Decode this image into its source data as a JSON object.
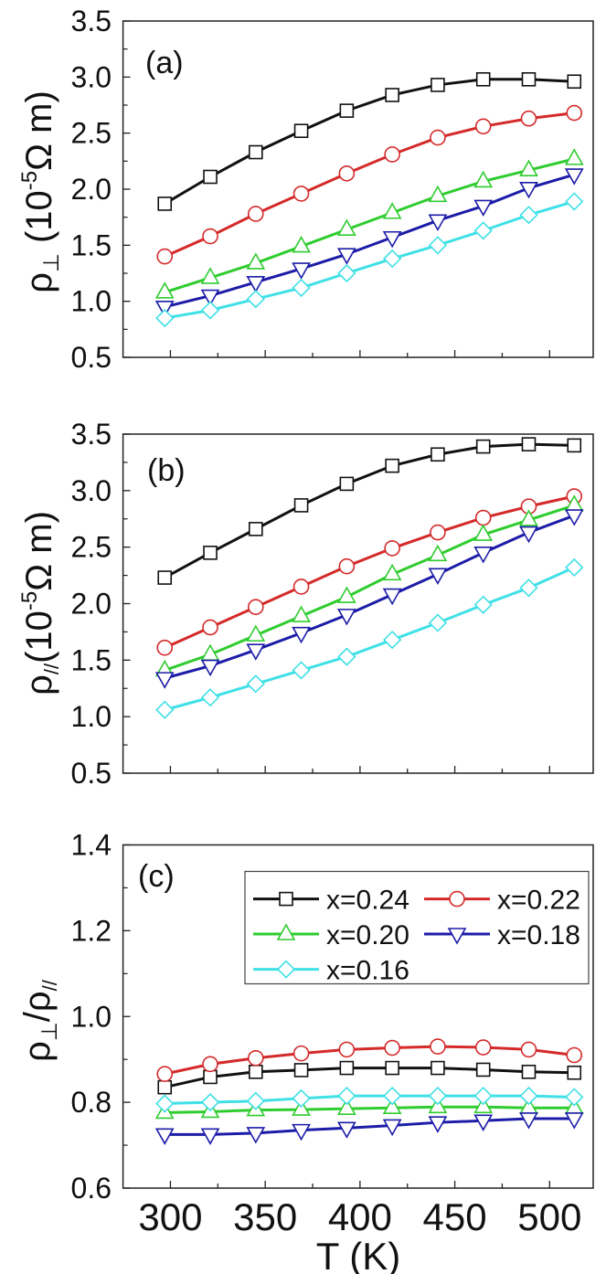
{
  "chart_data": {
    "type": "line",
    "xlabel": "T (K)",
    "x": [
      297,
      321,
      345,
      369,
      393,
      417,
      441,
      465,
      489,
      513
    ],
    "xlim": [
      275,
      523
    ],
    "xticks": [
      "300",
      "350",
      "400",
      "450",
      "500"
    ],
    "grid": false,
    "legend": {
      "placement": "top-right of panel (c)",
      "columns": 2
    },
    "series_styles": [
      {
        "name": "x=0.24",
        "marker": "square",
        "color": "#111111"
      },
      {
        "name": "x=0.22",
        "marker": "circle",
        "color": "#d42a2a"
      },
      {
        "name": "x=0.20",
        "marker": "triangle-up",
        "color": "#2fcc2f"
      },
      {
        "name": "x=0.18",
        "marker": "triangle-down",
        "color": "#1c1ca8"
      },
      {
        "name": "x=0.16",
        "marker": "diamond",
        "color": "#3fe0e6"
      }
    ],
    "panels": [
      {
        "label": "(a)",
        "ylabel": {
          "main": "ρ",
          "sub": "⊥",
          "pre": " (10",
          "sup": "-5",
          "post": "Ω m)"
        },
        "ylim": [
          0.5,
          3.5
        ],
        "yticks": [
          "0.5",
          "1.0",
          "1.5",
          "2.0",
          "2.5",
          "3.0",
          "3.5"
        ],
        "series": [
          {
            "name": "x=0.24",
            "values": [
              1.87,
              2.11,
              2.33,
              2.52,
              2.7,
              2.84,
              2.93,
              2.98,
              2.98,
              2.96
            ]
          },
          {
            "name": "x=0.22",
            "values": [
              1.4,
              1.58,
              1.78,
              1.96,
              2.14,
              2.31,
              2.46,
              2.56,
              2.63,
              2.68
            ]
          },
          {
            "name": "x=0.20",
            "values": [
              1.08,
              1.21,
              1.34,
              1.49,
              1.64,
              1.79,
              1.94,
              2.07,
              2.17,
              2.27
            ]
          },
          {
            "name": "x=0.18",
            "values": [
              0.95,
              1.05,
              1.17,
              1.29,
              1.42,
              1.57,
              1.72,
              1.85,
              2.01,
              2.13
            ]
          },
          {
            "name": "x=0.16",
            "values": [
              0.85,
              0.92,
              1.02,
              1.12,
              1.25,
              1.38,
              1.5,
              1.63,
              1.77,
              1.89
            ]
          }
        ]
      },
      {
        "label": "(b)",
        "ylabel": {
          "main": "ρ",
          "sub": "//",
          "pre": "(10",
          "sup": "-5",
          "post": "Ω m)"
        },
        "ylim": [
          0.5,
          3.5
        ],
        "yticks": [
          "0.5",
          "1.0",
          "1.5",
          "2.0",
          "2.5",
          "3.0",
          "3.5"
        ],
        "series": [
          {
            "name": "x=0.24",
            "values": [
              2.23,
              2.45,
              2.66,
              2.87,
              3.06,
              3.22,
              3.32,
              3.39,
              3.41,
              3.4
            ]
          },
          {
            "name": "x=0.22",
            "values": [
              1.61,
              1.79,
              1.97,
              2.15,
              2.33,
              2.49,
              2.63,
              2.76,
              2.86,
              2.95
            ]
          },
          {
            "name": "x=0.20",
            "values": [
              1.41,
              1.55,
              1.72,
              1.89,
              2.06,
              2.26,
              2.43,
              2.61,
              2.74,
              2.87
            ]
          },
          {
            "name": "x=0.18",
            "values": [
              1.34,
              1.45,
              1.59,
              1.74,
              1.9,
              2.08,
              2.26,
              2.45,
              2.63,
              2.78
            ]
          },
          {
            "name": "x=0.16",
            "values": [
              1.06,
              1.17,
              1.29,
              1.41,
              1.53,
              1.68,
              1.83,
              1.99,
              2.14,
              2.32
            ]
          }
        ]
      },
      {
        "label": "(c)",
        "ylabel": {
          "main": "ρ",
          "sub": "⊥",
          "pre": "/ρ",
          "sup": "",
          "post": "//"
        },
        "ylim": [
          0.6,
          1.4
        ],
        "yticks": [
          "0.6",
          "0.8",
          "1.0",
          "1.2",
          "1.4"
        ],
        "series": [
          {
            "name": "x=0.24",
            "values": [
              0.835,
              0.859,
              0.871,
              0.875,
              0.88,
              0.88,
              0.88,
              0.876,
              0.871,
              0.869
            ]
          },
          {
            "name": "x=0.22",
            "values": [
              0.866,
              0.889,
              0.903,
              0.914,
              0.923,
              0.927,
              0.93,
              0.928,
              0.923,
              0.91
            ]
          },
          {
            "name": "x=0.20",
            "values": [
              0.776,
              0.778,
              0.782,
              0.783,
              0.785,
              0.787,
              0.789,
              0.789,
              0.787,
              0.787
            ]
          },
          {
            "name": "x=0.18",
            "values": [
              0.725,
              0.725,
              0.728,
              0.735,
              0.74,
              0.746,
              0.753,
              0.757,
              0.762,
              0.762
            ]
          },
          {
            "name": "x=0.16",
            "values": [
              0.797,
              0.8,
              0.803,
              0.809,
              0.815,
              0.815,
              0.815,
              0.815,
              0.815,
              0.812
            ]
          }
        ]
      }
    ]
  }
}
